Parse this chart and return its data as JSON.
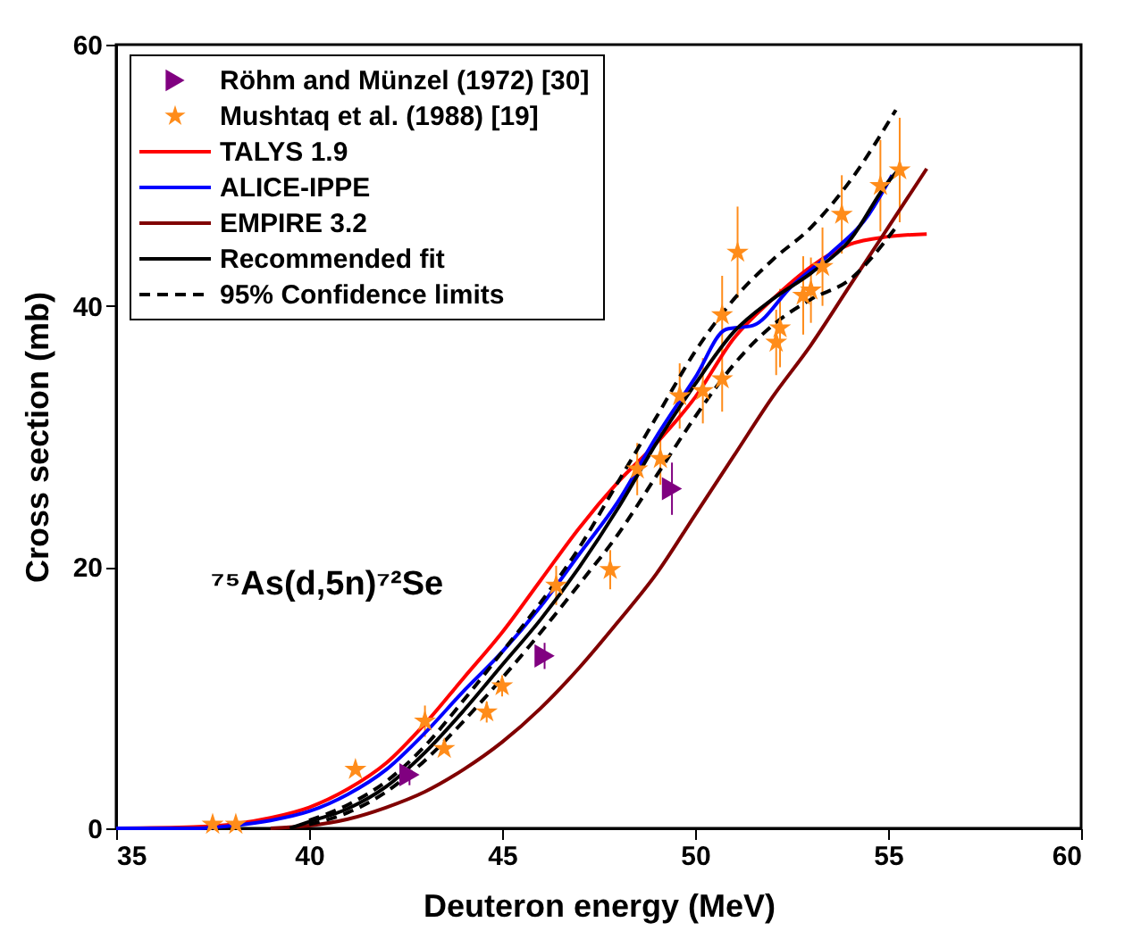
{
  "chart_data": {
    "type": "line",
    "xlabel": "Deuteron energy (MeV)",
    "ylabel": "Cross section (mb)",
    "xlim": [
      35,
      60
    ],
    "ylim": [
      0,
      60
    ],
    "xticks": [
      35,
      40,
      45,
      50,
      55,
      60
    ],
    "yticks": [
      0,
      20,
      40,
      60
    ],
    "grid": false,
    "legend": "top left",
    "annotations": [
      "⁷⁵As(d,5n)⁷²Se"
    ],
    "series": [
      {
        "name": "Röhm and Münzel (1972)  [30]",
        "type": "scatter",
        "marker": "triangle",
        "color": "#800080",
        "x": [
          42.6,
          46.1,
          49.4
        ],
        "values": [
          4.1,
          13.2,
          26.0
        ],
        "errors": [
          0.8,
          1.0,
          2.0
        ]
      },
      {
        "name": "Mushtaq et al. (1988)        [19]",
        "type": "scatter",
        "marker": "star",
        "color": "#ff8c1a",
        "x": [
          37.5,
          38.1,
          41.2,
          43.0,
          43.5,
          44.6,
          45.0,
          46.4,
          47.8,
          48.5,
          49.1,
          49.6,
          50.2,
          50.7,
          50.7,
          51.1,
          52.1,
          52.2,
          52.8,
          53.0,
          53.3,
          53.8,
          54.8,
          55.3
        ],
        "values": [
          0.3,
          0.3,
          4.5,
          8.2,
          6.1,
          8.9,
          10.9,
          18.6,
          19.8,
          27.5,
          28.3,
          33.1,
          33.5,
          34.4,
          39.3,
          44.1,
          37.2,
          38.3,
          40.8,
          41.2,
          43.0,
          47.0,
          49.2,
          50.4
        ],
        "errors": [
          null,
          null,
          null,
          1.2,
          null,
          0.8,
          0.8,
          1.5,
          1.5,
          2.0,
          2.0,
          2.5,
          2.5,
          2.5,
          3.0,
          3.5,
          2.5,
          3.0,
          3.0,
          2.5,
          3.0,
          3.0,
          3.5,
          4.0
        ]
      },
      {
        "name": "TALYS 1.9",
        "line_style": "solid",
        "color": "#ff0000",
        "x": [
          35,
          37,
          38,
          39,
          40,
          41,
          42,
          43,
          44,
          45,
          46,
          47,
          48,
          49,
          50,
          51,
          52,
          53,
          54,
          55,
          56
        ],
        "values": [
          0,
          0.1,
          0.3,
          0.8,
          1.6,
          3,
          5,
          8,
          11.5,
          15,
          19,
          23,
          26.5,
          29.5,
          33,
          37.5,
          40.5,
          43,
          44.7,
          45.3,
          45.5
        ]
      },
      {
        "name": "ALICE-IPPE",
        "line_style": "solid",
        "color": "#0000ff",
        "x": [
          35,
          37,
          38,
          39,
          40,
          41,
          42,
          43,
          44,
          45,
          46,
          47,
          48,
          49,
          50,
          50.8,
          51.5,
          52.5,
          53.5,
          54.5,
          55.1
        ],
        "values": [
          0,
          0,
          0.2,
          0.6,
          1.3,
          2.6,
          4.5,
          7.3,
          10.5,
          13.5,
          17,
          21,
          25,
          30,
          34.5,
          38.2,
          38.5,
          41.5,
          44,
          47,
          50
        ]
      },
      {
        "name": "EMPIRE 3.2",
        "line_style": "solid",
        "color": "#800000",
        "x": [
          39,
          40,
          41,
          42,
          43,
          44,
          45,
          46,
          47,
          48,
          49,
          50,
          51,
          52,
          53,
          54,
          55,
          56
        ],
        "values": [
          0,
          0.2,
          0.7,
          1.6,
          2.8,
          4.5,
          6.6,
          9.2,
          12.3,
          15.8,
          19.5,
          24,
          28.5,
          33,
          37,
          41.5,
          46,
          50.5
        ]
      },
      {
        "name": "Recommended fit",
        "line_style": "solid",
        "color": "#000000",
        "x": [
          39.5,
          40,
          41,
          42,
          43,
          44,
          45,
          46,
          47,
          48,
          49,
          50,
          51,
          52,
          53,
          54,
          55,
          55.3
        ],
        "values": [
          0,
          0.5,
          1.5,
          3.2,
          5.8,
          9,
          12.5,
          16,
          20,
          24.5,
          29.5,
          34,
          38,
          40.5,
          42.5,
          45,
          49.5,
          50.5
        ]
      },
      {
        "name": "95% Confidence limits",
        "line_style": "dashed",
        "color": "#000000",
        "x": [
          40,
          41,
          42,
          43,
          44,
          45,
          46,
          47,
          48,
          49,
          50,
          51,
          52,
          53,
          54,
          55.2
        ],
        "values": [
          0.6,
          1.8,
          3.6,
          6.3,
          9.8,
          13.5,
          17.3,
          21.5,
          26.5,
          31.5,
          36.5,
          40.5,
          43.5,
          46,
          49.5,
          55
        ]
      },
      {
        "line_style": "dashed",
        "color": "#000000",
        "x": [
          40,
          41,
          42,
          43,
          44,
          45,
          46,
          47,
          48,
          49,
          50,
          51,
          52,
          53,
          54,
          55.2
        ],
        "values": [
          0.3,
          1.2,
          2.8,
          5.2,
          8.2,
          11.5,
          15,
          18.7,
          22.5,
          27,
          31.5,
          35.5,
          38.5,
          40.5,
          42,
          46
        ]
      }
    ]
  }
}
